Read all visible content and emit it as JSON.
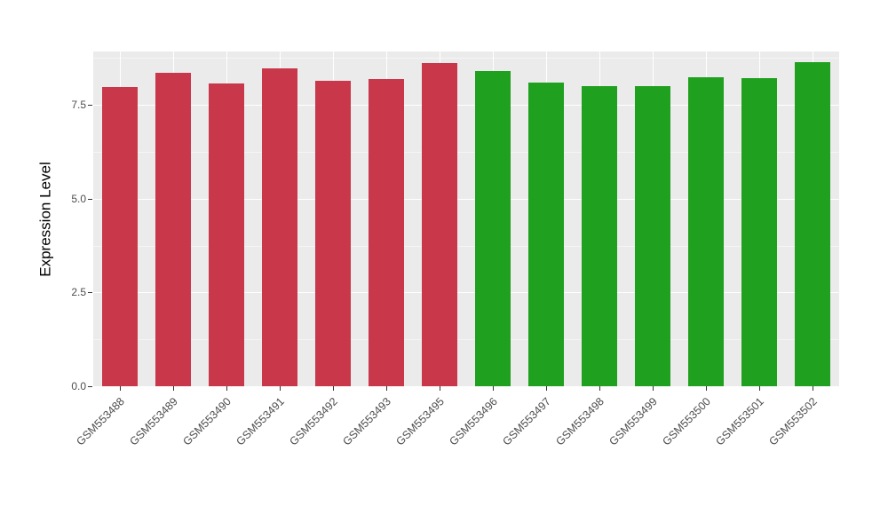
{
  "chart_data": {
    "type": "bar",
    "title": "",
    "xlabel": "",
    "ylabel": "Expression Level",
    "categories": [
      "GSM553488",
      "GSM553489",
      "GSM553490",
      "GSM553491",
      "GSM553492",
      "GSM553493",
      "GSM553495",
      "GSM553496",
      "GSM553497",
      "GSM553498",
      "GSM553499",
      "GSM553500",
      "GSM553501",
      "GSM553502"
    ],
    "values": [
      7.97,
      8.36,
      8.08,
      8.48,
      8.13,
      8.18,
      8.62,
      8.4,
      8.1,
      8.0,
      8.0,
      8.24,
      8.2,
      8.64
    ],
    "bar_colors": [
      "#C8374A",
      "#C8374A",
      "#C8374A",
      "#C8374A",
      "#C8374A",
      "#C8374A",
      "#C8374A",
      "#1FA01F",
      "#1FA01F",
      "#1FA01F",
      "#1FA01F",
      "#1FA01F",
      "#1FA01F",
      "#1FA01F"
    ],
    "ylim": [
      0,
      8.92
    ],
    "yticks": {
      "values": [
        0,
        2.5,
        5,
        7.5
      ],
      "labels": [
        "0.0",
        "2.5",
        "5.0",
        "7.5"
      ]
    },
    "minor_ticks": [
      1.25,
      3.75,
      6.25,
      8.75
    ],
    "grid": true,
    "legend_position": "none",
    "theme": {
      "panel_bg": "#EBEBEB",
      "grid_major_color": "#FFFFFF",
      "grid_minor_color": "#F5F5F5",
      "axis_text_color": "#4D4D4D",
      "axis_title_color": "#000000",
      "tick_mark_color": "#333333",
      "background": "#FFFFFF"
    }
  }
}
